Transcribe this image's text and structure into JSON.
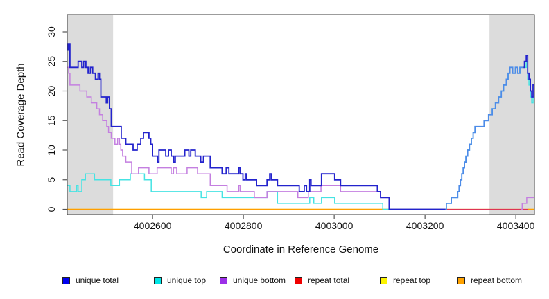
{
  "chart_data": {
    "type": "line",
    "subtype": "step",
    "title": "",
    "xlabel": "Coordinate in Reference Genome",
    "ylabel": "Read Coverage Depth",
    "xlim": [
      4002412,
      4003441
    ],
    "ylim": [
      0,
      30
    ],
    "x_ticks": [
      4002600,
      4002800,
      4003000,
      4003200,
      4003400
    ],
    "y_ticks": [
      0,
      5,
      10,
      15,
      20,
      25,
      30
    ],
    "grid": false,
    "legend_position": "bottom",
    "shade_color": "#dcdcdc",
    "axis_color": "#3a3a3a",
    "shaded_regions": [
      {
        "x0": 4002412,
        "x1": 4002513
      },
      {
        "x0": 4003342,
        "x1": 4003441
      }
    ],
    "series": [
      {
        "name": "unique total",
        "color": "#2323cd",
        "line_width": 1.8,
        "segments": [
          {
            "points": [
              [
                4002412,
                27
              ],
              [
                4002414,
                28
              ],
              [
                4002418,
                24
              ],
              [
                4002436,
                25
              ],
              [
                4002444,
                24
              ],
              [
                4002448,
                25
              ],
              [
                4002453,
                24
              ],
              [
                4002458,
                23
              ],
              [
                4002463,
                24
              ],
              [
                4002468,
                23
              ],
              [
                4002474,
                22
              ],
              [
                4002480,
                23
              ],
              [
                4002483,
                22
              ],
              [
                4002486,
                19
              ],
              [
                4002498,
                18
              ],
              [
                4002501,
                19
              ],
              [
                4002505,
                17
              ],
              [
                4002509,
                14
              ],
              [
                4002531,
                12
              ],
              [
                4002541,
                11
              ],
              [
                4002557,
                10
              ],
              [
                4002566,
                11
              ],
              [
                4002574,
                12
              ],
              [
                4002580,
                13
              ],
              [
                4002592,
                12
              ],
              [
                4002596,
                11
              ],
              [
                4002600,
                9
              ],
              [
                4002611,
                8
              ],
              [
                4002614,
                10
              ],
              [
                4002629,
                9
              ],
              [
                4002635,
                10
              ],
              [
                4002641,
                9
              ],
              [
                4002647,
                8
              ],
              [
                4002650,
                9
              ],
              [
                4002671,
                10
              ],
              [
                4002680,
                9
              ],
              [
                4002684,
                10
              ],
              [
                4002694,
                9
              ],
              [
                4002706,
                8
              ],
              [
                4002712,
                9
              ],
              [
                4002727,
                7
              ],
              [
                4002753,
                6
              ],
              [
                4002762,
                7
              ],
              [
                4002768,
                6
              ],
              [
                4002790,
                7
              ],
              [
                4002793,
                6
              ],
              [
                4002799,
                5
              ],
              [
                4002804,
                6
              ],
              [
                4002807,
                5
              ],
              [
                4002829,
                4
              ],
              [
                4002852,
                5
              ],
              [
                4002858,
                6
              ],
              [
                4002861,
                5
              ],
              [
                4002875,
                4
              ],
              [
                4002923,
                3
              ],
              [
                4002934,
                4
              ],
              [
                4002939,
                3
              ],
              [
                4002946,
                5
              ],
              [
                4002949,
                4
              ],
              [
                4002972,
                6
              ],
              [
                4003001,
                5
              ],
              [
                4003014,
                4
              ],
              [
                4003095,
                3
              ],
              [
                4003102,
                2
              ],
              [
                4003121,
                0
              ],
              [
                4003245,
                0
              ]
            ]
          },
          {
            "color": "#4d8ce8",
            "points": [
              [
                4003245,
                0
              ],
              [
                4003247,
                1
              ],
              [
                4003258,
                2
              ],
              [
                4003272,
                3
              ],
              [
                4003275,
                4
              ],
              [
                4003278,
                5
              ],
              [
                4003281,
                6
              ],
              [
                4003284,
                7
              ],
              [
                4003287,
                8
              ],
              [
                4003290,
                9
              ],
              [
                4003294,
                10
              ],
              [
                4003298,
                11
              ],
              [
                4003302,
                12
              ],
              [
                4003306,
                13
              ],
              [
                4003310,
                14
              ],
              [
                4003330,
                15
              ],
              [
                4003340,
                16
              ],
              [
                4003348,
                17
              ],
              [
                4003355,
                18
              ],
              [
                4003362,
                19
              ],
              [
                4003368,
                20
              ],
              [
                4003373,
                21
              ],
              [
                4003379,
                22
              ],
              [
                4003383,
                23
              ],
              [
                4003387,
                24
              ],
              [
                4003393,
                23
              ],
              [
                4003399,
                24
              ],
              [
                4003404,
                23
              ],
              [
                4003409,
                24
              ],
              [
                4003417,
                24
              ]
            ]
          },
          {
            "points": [
              [
                4003417,
                24
              ],
              [
                4003419,
                25
              ],
              [
                4003423,
                26
              ],
              [
                4003426,
                23
              ],
              [
                4003429,
                22
              ],
              [
                4003432,
                20
              ],
              [
                4003435,
                19
              ],
              [
                4003438,
                21
              ],
              [
                4003441,
                21
              ]
            ]
          }
        ]
      },
      {
        "name": "unique top",
        "color": "#45e3e3",
        "line_width": 1.5,
        "segments": [
          {
            "points": [
              [
                4002412,
                4
              ],
              [
                4002418,
                3
              ],
              [
                4002433,
                4
              ],
              [
                4002436,
                3
              ],
              [
                4002444,
                5
              ],
              [
                4002452,
                6
              ],
              [
                4002472,
                5
              ],
              [
                4002508,
                4
              ],
              [
                4002527,
                5
              ],
              [
                4002551,
                6
              ],
              [
                4002582,
                5
              ],
              [
                4002597,
                3
              ],
              [
                4002707,
                2
              ],
              [
                4002719,
                3
              ],
              [
                4002753,
                2
              ],
              [
                4002852,
                3
              ],
              [
                4002875,
                1
              ],
              [
                4002946,
                2
              ],
              [
                4002955,
                1
              ],
              [
                4002972,
                2
              ],
              [
                4003001,
                1
              ],
              [
                4003107,
                0
              ],
              [
                4003245,
                0
              ],
              [
                4003247,
                1
              ],
              [
                4003258,
                2
              ],
              [
                4003272,
                3
              ],
              [
                4003275,
                4
              ],
              [
                4003278,
                5
              ],
              [
                4003281,
                6
              ],
              [
                4003284,
                7
              ],
              [
                4003287,
                8
              ],
              [
                4003290,
                9
              ],
              [
                4003294,
                10
              ],
              [
                4003298,
                11
              ],
              [
                4003302,
                12
              ],
              [
                4003306,
                13
              ],
              [
                4003310,
                14
              ],
              [
                4003330,
                15
              ],
              [
                4003340,
                16
              ],
              [
                4003348,
                17
              ],
              [
                4003355,
                18
              ],
              [
                4003362,
                19
              ],
              [
                4003368,
                20
              ],
              [
                4003373,
                21
              ],
              [
                4003379,
                22
              ],
              [
                4003383,
                23
              ],
              [
                4003387,
                24
              ],
              [
                4003393,
                23
              ],
              [
                4003399,
                24
              ],
              [
                4003404,
                23
              ],
              [
                4003409,
                24
              ],
              [
                4003419,
                24
              ],
              [
                4003423,
                25
              ],
              [
                4003426,
                22
              ],
              [
                4003429,
                21
              ],
              [
                4003432,
                19
              ],
              [
                4003435,
                18
              ],
              [
                4003438,
                19
              ],
              [
                4003441,
                19
              ]
            ]
          }
        ]
      },
      {
        "name": "unique bottom",
        "color": "#c47fe0",
        "line_width": 1.5,
        "segments": [
          {
            "points": [
              [
                4002412,
                24
              ],
              [
                4002415,
                23
              ],
              [
                4002418,
                21
              ],
              [
                4002440,
                20
              ],
              [
                4002455,
                19
              ],
              [
                4002465,
                18
              ],
              [
                4002477,
                17
              ],
              [
                4002483,
                16
              ],
              [
                4002490,
                15
              ],
              [
                4002499,
                14
              ],
              [
                4002503,
                13
              ],
              [
                4002509,
                12
              ],
              [
                4002517,
                11
              ],
              [
                4002523,
                12
              ],
              [
                4002527,
                11
              ],
              [
                4002530,
                10
              ],
              [
                4002534,
                9
              ],
              [
                4002541,
                8
              ],
              [
                4002554,
                6
              ],
              [
                4002569,
                7
              ],
              [
                4002592,
                6
              ],
              [
                4002610,
                7
              ],
              [
                4002641,
                6
              ],
              [
                4002646,
                7
              ],
              [
                4002653,
                6
              ],
              [
                4002676,
                7
              ],
              [
                4002699,
                6
              ],
              [
                4002727,
                4
              ],
              [
                4002764,
                3
              ],
              [
                4002790,
                4
              ],
              [
                4002793,
                3
              ],
              [
                4002824,
                2
              ],
              [
                4002852,
                3
              ],
              [
                4002920,
                2
              ],
              [
                4002943,
                3
              ],
              [
                4002971,
                4
              ],
              [
                4003014,
                3
              ],
              [
                4003102,
                2
              ],
              [
                4003121,
                0
              ],
              [
                4003245,
                0
              ]
            ]
          },
          {
            "points": [
              [
                4003411,
                0
              ],
              [
                4003414,
                1
              ],
              [
                4003424,
                2
              ],
              [
                4003441,
                2
              ]
            ]
          }
        ]
      },
      {
        "name": "repeat total",
        "color": "#de3355",
        "line_width": 1.3,
        "segments": [
          {
            "points": [
              [
                4003245,
                0
              ],
              [
                4003428,
                0
              ]
            ]
          }
        ]
      },
      {
        "name": "repeat top",
        "color": "#fcf400",
        "line_width": 1.2,
        "segments": [
          {
            "points": [
              [
                4002412,
                0
              ],
              [
                4003441,
                0
              ]
            ]
          }
        ]
      },
      {
        "name": "repeat bottom",
        "color": "#ff9e00",
        "line_width": 1.5,
        "segments": [
          {
            "points": [
              [
                4002412,
                0
              ],
              [
                4003248,
                0
              ]
            ]
          },
          {
            "points": [
              [
                4003426,
                0
              ],
              [
                4003441,
                0
              ]
            ]
          }
        ]
      }
    ],
    "legend": [
      {
        "label": "unique total",
        "color": "#0000f0"
      },
      {
        "label": "unique top",
        "color": "#00e6e6"
      },
      {
        "label": "unique bottom",
        "color": "#9c2fe8"
      },
      {
        "label": "repeat total",
        "color": "#f00000"
      },
      {
        "label": "repeat top",
        "color": "#fcf400"
      },
      {
        "label": "repeat bottom",
        "color": "#ffa200"
      }
    ]
  }
}
